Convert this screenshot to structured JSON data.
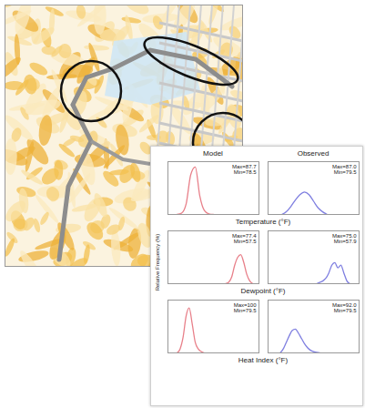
{
  "figure": {
    "column_titles": [
      "Model",
      "Observed"
    ],
    "row_labels": [
      "Temperature (°F)",
      "Dewpoint (°F)",
      "Heat Index (°F)"
    ],
    "ylabel": "Relative Frequency (%)"
  },
  "chart_data": [
    {
      "type": "line",
      "annotations": [
        "Max=87.7",
        "Min=78.5"
      ],
      "color": "#e8808a",
      "tick_labels": false,
      "x": [
        77,
        78,
        79,
        80,
        81,
        82,
        83,
        84,
        85
      ],
      "values": [
        0,
        1,
        8,
        30,
        36,
        14,
        3,
        0.5,
        0
      ],
      "xlim": [
        75,
        95
      ],
      "ylim": [
        0,
        40
      ]
    },
    {
      "type": "line",
      "annotations": [
        "Max=87.0",
        "Min=79.5"
      ],
      "color": "#7f7fe0",
      "tick_labels": false,
      "x": [
        78,
        79,
        80,
        81,
        82,
        83,
        84,
        85,
        86,
        87,
        88
      ],
      "values": [
        0,
        2,
        6,
        11,
        15,
        17,
        15,
        10,
        5,
        2,
        0
      ],
      "xlim": [
        75,
        95
      ],
      "ylim": [
        0,
        40
      ]
    },
    {
      "type": "line",
      "annotations": [
        "Max=77.4",
        "Min=57.5"
      ],
      "color": "#e8808a",
      "tick_labels": false,
      "x": [
        69,
        70,
        71,
        72,
        73,
        74,
        75,
        76,
        77,
        78
      ],
      "values": [
        0,
        1,
        5,
        14,
        20,
        22,
        16,
        7,
        2,
        0
      ],
      "xlim": [
        50,
        80
      ],
      "ylim": [
        0,
        40
      ]
    },
    {
      "type": "line",
      "annotations": [
        "Max=75.0",
        "Min=57.9"
      ],
      "color": "#7f7fe0",
      "tick_labels": false,
      "x": [
        66,
        67,
        68,
        69,
        70,
        71,
        72,
        73,
        74,
        75,
        76,
        77
      ],
      "values": [
        0,
        1,
        2,
        4,
        8,
        14,
        16,
        12,
        14,
        8,
        2,
        0
      ],
      "xlim": [
        50,
        80
      ],
      "ylim": [
        0,
        40
      ]
    },
    {
      "type": "line",
      "annotations": [
        "Max=100",
        "Min=79.5"
      ],
      "color": "#e8808a",
      "tick_labels": false,
      "x": [
        78,
        79,
        80,
        81,
        82,
        83,
        84,
        85,
        86,
        87
      ],
      "values": [
        0,
        3,
        12,
        28,
        34,
        22,
        8,
        3,
        1,
        0
      ],
      "xlim": [
        75,
        105
      ],
      "ylim": [
        0,
        40
      ]
    },
    {
      "type": "line",
      "annotations": [
        "Max=92.0",
        "Min=79.5"
      ],
      "color": "#7f7fe0",
      "tick_labels": false,
      "x": [
        79,
        80,
        81,
        82,
        83,
        84,
        85,
        86,
        87,
        88,
        89,
        90,
        91,
        92
      ],
      "values": [
        0,
        3,
        8,
        13,
        17,
        18,
        15,
        11,
        7,
        4,
        2,
        1,
        0.5,
        0
      ],
      "xlim": [
        75,
        105
      ],
      "ylim": [
        0,
        40
      ]
    }
  ]
}
